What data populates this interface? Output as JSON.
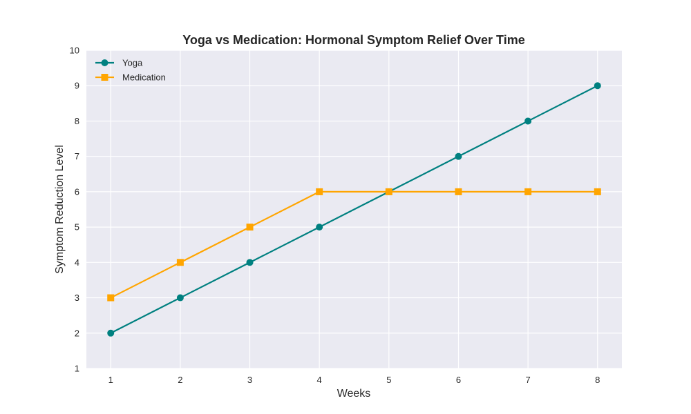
{
  "chart_data": {
    "type": "line",
    "title": "Yoga vs Medication: Hormonal Symptom Relief Over Time",
    "xlabel": "Weeks",
    "ylabel": "Symptom Reduction Level",
    "x": [
      1,
      2,
      3,
      4,
      5,
      6,
      7,
      8
    ],
    "xticks": [
      "1",
      "2",
      "3",
      "4",
      "5",
      "6",
      "7",
      "8"
    ],
    "yticks": [
      "1",
      "2",
      "3",
      "4",
      "5",
      "6",
      "7",
      "8",
      "9",
      "10"
    ],
    "xlim": [
      0.65,
      8.35
    ],
    "ylim": [
      1,
      10
    ],
    "grid": true,
    "legend_position": "top-left",
    "series": [
      {
        "name": "Yoga",
        "values": [
          2,
          3,
          4,
          5,
          6,
          7,
          8,
          9
        ],
        "color": "#008080",
        "marker": "circle"
      },
      {
        "name": "Medication",
        "values": [
          3,
          4,
          5,
          6,
          6,
          6,
          6,
          6
        ],
        "color": "#FFA500",
        "marker": "square"
      }
    ]
  },
  "colors": {
    "plot_background": "#EAEAF2",
    "grid": "#FFFFFF",
    "text": "#262626"
  }
}
